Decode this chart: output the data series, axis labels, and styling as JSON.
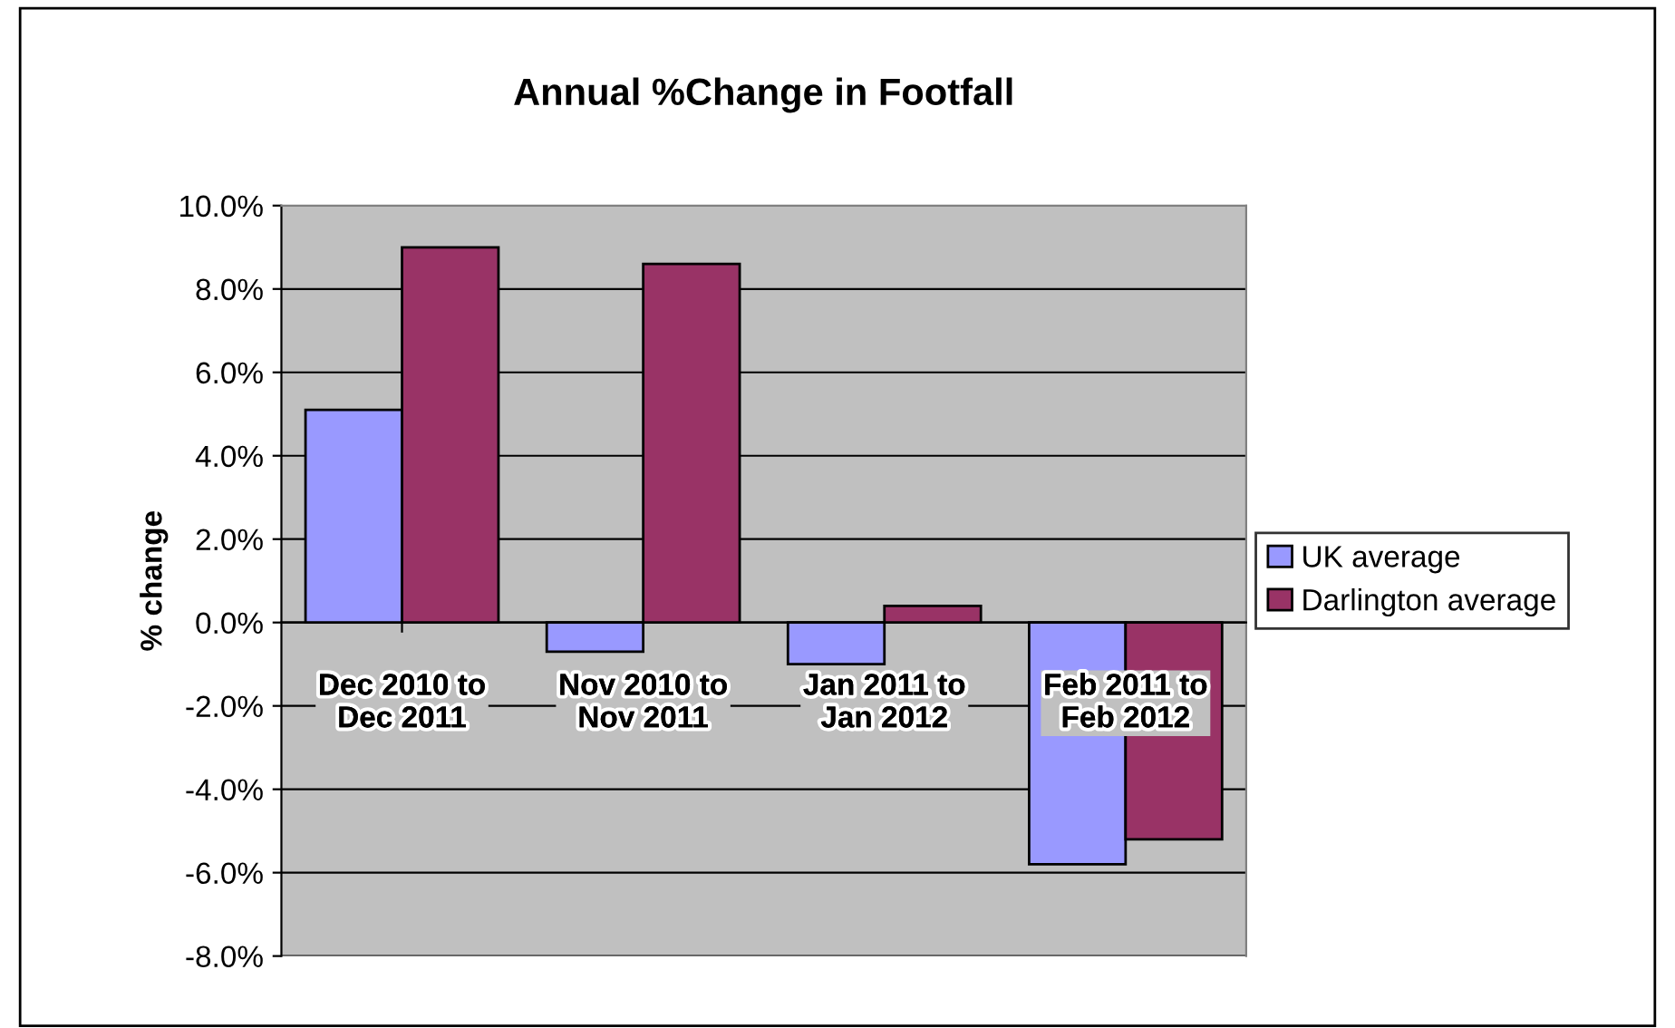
{
  "chart_data": {
    "type": "bar",
    "title": "Annual %Change in Footfall",
    "ylabel": "% change",
    "categories": [
      "Dec 2010 to\nDec 2011",
      "Nov 2010 to\nNov 2011",
      "Jan 2011 to\nJan 2012",
      "Feb 2011 to\nFeb 2012"
    ],
    "series": [
      {
        "name": "UK average",
        "color": "#9999ff",
        "values": [
          5.1,
          -0.7,
          -1.0,
          -5.8
        ]
      },
      {
        "name": "Darlington average",
        "color": "#993366",
        "values": [
          9.0,
          8.6,
          0.4,
          -5.2
        ]
      }
    ],
    "ylim": [
      -8,
      10
    ],
    "yticks": [
      {
        "value": -8,
        "label": "-8.0%"
      },
      {
        "value": -6,
        "label": "-6.0%"
      },
      {
        "value": -4,
        "label": "-4.0%"
      },
      {
        "value": -2,
        "label": "-2.0%"
      },
      {
        "value": 0,
        "label": "0.0%"
      },
      {
        "value": 2,
        "label": "2.0%"
      },
      {
        "value": 4,
        "label": "4.0%"
      },
      {
        "value": 6,
        "label": "6.0%"
      },
      {
        "value": 8,
        "label": "8.0%"
      },
      {
        "value": 10,
        "label": "10.0%"
      }
    ],
    "grid": "y",
    "legend": "right"
  }
}
